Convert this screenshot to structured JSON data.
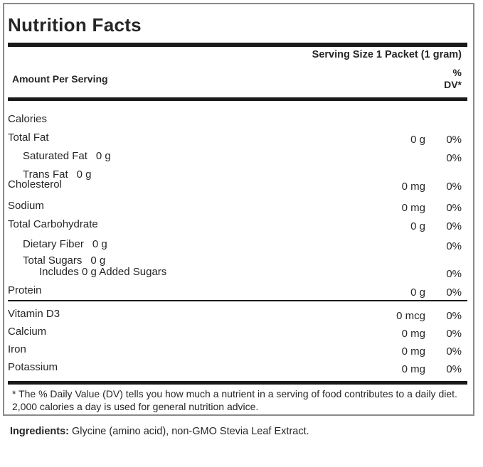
{
  "panel": {
    "title": "Nutrition Facts",
    "serving_size": "Serving Size 1 Packet (1 gram)",
    "amount_per_serving": "Amount Per Serving",
    "dv_header": {
      "line1": "%",
      "line2": "DV*"
    },
    "nutrient_rows": [
      {
        "name": "Calories",
        "inline": "",
        "amount": "",
        "dv": "",
        "indent": 0
      },
      {
        "name": "Total Fat",
        "inline": "",
        "amount": "0 g",
        "dv": "0%",
        "indent": 0
      },
      {
        "name": "Saturated Fat",
        "inline": "0 g",
        "amount": "",
        "dv": "0%",
        "indent": 1
      },
      {
        "name": "Trans Fat",
        "inline": "0 g",
        "amount": "",
        "dv": "",
        "indent": 1
      },
      {
        "name": "Cholesterol",
        "inline": "",
        "amount": "0 mg",
        "dv": "0%",
        "indent": 0
      },
      {
        "name": "Sodium",
        "inline": "",
        "amount": "0 mg",
        "dv": "0%",
        "indent": 0
      },
      {
        "name": "Total Carbohydrate",
        "inline": "",
        "amount": "0 g",
        "dv": "0%",
        "indent": 0
      },
      {
        "name": "Dietary Fiber",
        "inline": "0 g",
        "amount": "",
        "dv": "0%",
        "indent": 1
      },
      {
        "name": "Total Sugars",
        "inline": "0 g",
        "amount": "",
        "dv": "",
        "indent": 1
      },
      {
        "name": "Includes 0 g Added Sugars",
        "inline": "",
        "amount": "",
        "dv": "0%",
        "indent": 2
      },
      {
        "name": "Protein",
        "inline": "",
        "amount": "0 g",
        "dv": "0%",
        "indent": 0
      }
    ],
    "vitamin_rows": [
      {
        "name": "Vitamin D3",
        "inline": "",
        "amount": "0 mcg",
        "dv": "0%",
        "indent": 0
      },
      {
        "name": "Calcium",
        "inline": "",
        "amount": "0 mg",
        "dv": "0%",
        "indent": 0
      },
      {
        "name": "Iron",
        "inline": "",
        "amount": "0 mg",
        "dv": "0%",
        "indent": 0
      },
      {
        "name": "Potassium",
        "inline": "",
        "amount": "0 mg",
        "dv": "0%",
        "indent": 0
      }
    ],
    "footnote": "* The % Daily Value (DV) tells you how much a nutrient in a serving of food contributes to a daily diet. 2,000 calories a day is used for general nutrition advice."
  },
  "ingredients": {
    "label": "Ingredients:",
    "text": " Glycine (amino acid), non-GMO Stevia Leaf Extract."
  },
  "colors": {
    "text": "#262626",
    "rule": "#1a1a1a",
    "border": "#8a8a8a",
    "background": "#ffffff"
  }
}
